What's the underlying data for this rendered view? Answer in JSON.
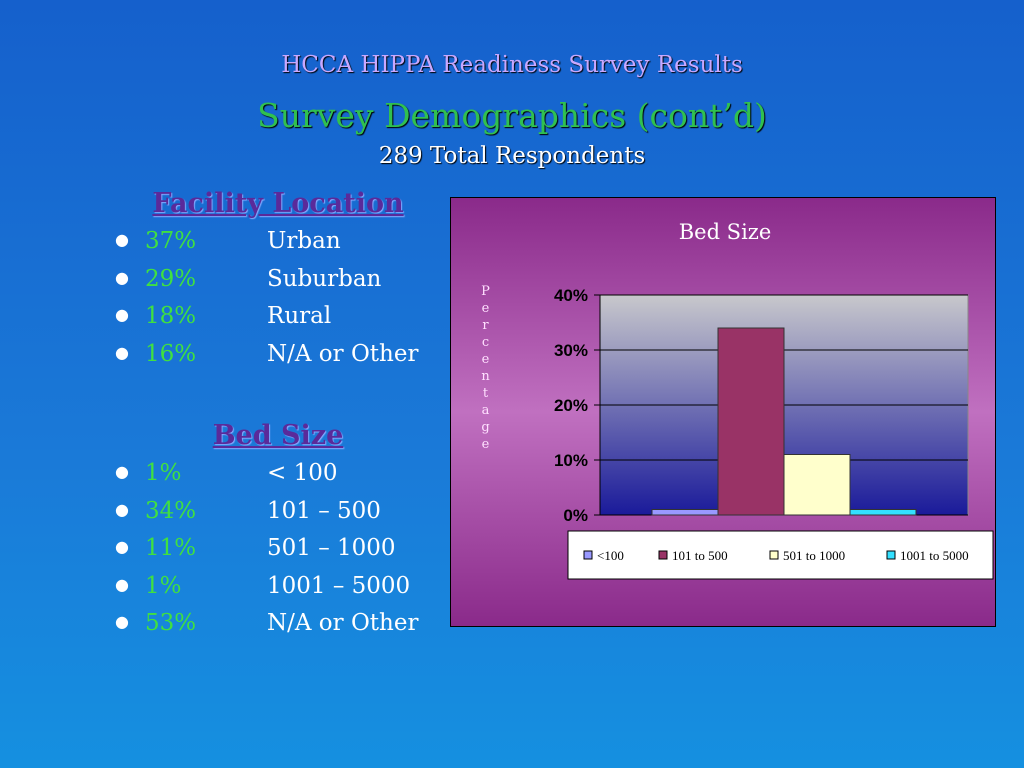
{
  "header": {
    "title": "HCCA HIPPA Readiness Survey Results",
    "subtitle": "Survey Demographics (cont’d)",
    "respondents": "289 Total Respondents"
  },
  "sections": [
    {
      "heading": "Facility Location",
      "items": [
        [
          "37%",
          "Urban"
        ],
        [
          "29%",
          "Suburban"
        ],
        [
          "18%",
          "Rural"
        ],
        [
          "16%",
          "N/A or Other"
        ]
      ]
    },
    {
      "heading": "Bed Size",
      "items": [
        [
          "1%",
          "< 100"
        ],
        [
          "34%",
          "101 – 500"
        ],
        [
          "11%",
          "501 – 1000"
        ],
        [
          "1%",
          "1001 – 5000"
        ],
        [
          "53%",
          "N/A or Other"
        ]
      ]
    }
  ],
  "chart_data": {
    "type": "bar",
    "title": "Bed Size",
    "ylabel": "Percentage",
    "categories": [
      null
    ],
    "series": [
      {
        "name": "<100",
        "color": "#9999ff",
        "values": [
          1
        ]
      },
      {
        "name": "101 to 500",
        "color": "#993366",
        "values": [
          34
        ]
      },
      {
        "name": "501 to 1000",
        "color": "#ffffcc",
        "values": [
          11
        ]
      },
      {
        "name": "1001 to 5000",
        "color": "#33e0ff",
        "values": [
          1
        ]
      }
    ],
    "ylim": [
      0,
      40
    ],
    "yticks": [
      {
        "value": 0,
        "label": "0%"
      },
      {
        "value": 10,
        "label": "10%"
      },
      {
        "value": 20,
        "label": "20%"
      },
      {
        "value": 30,
        "label": "30%"
      },
      {
        "value": 40,
        "label": "40%"
      }
    ],
    "grid": true,
    "legend": "bottom"
  }
}
